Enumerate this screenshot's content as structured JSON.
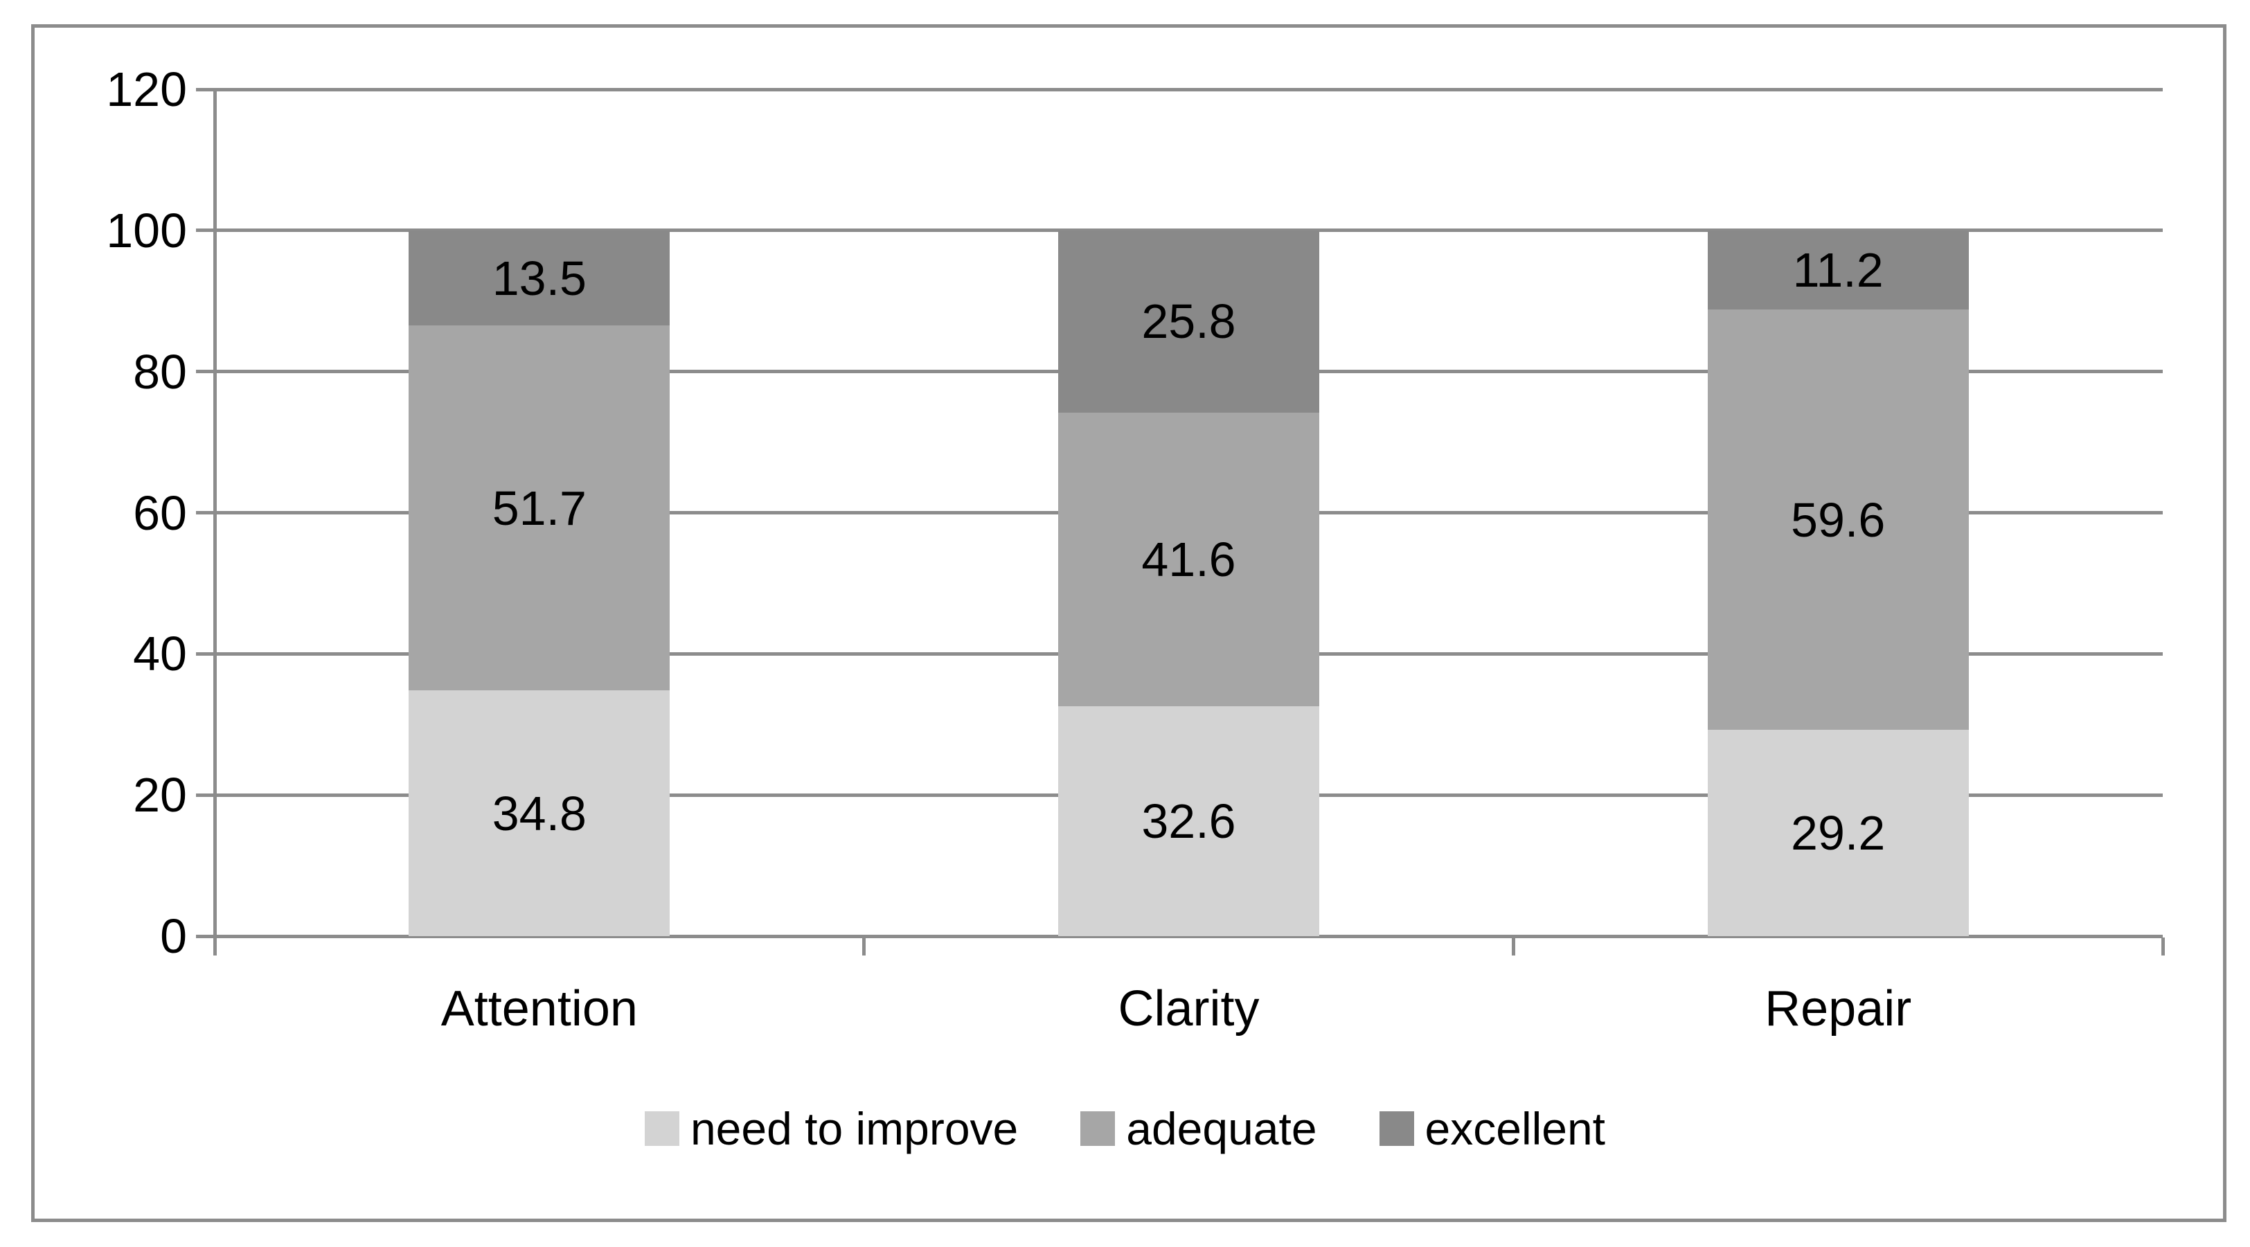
{
  "chart_data": {
    "type": "bar",
    "stacked": true,
    "categories": [
      "Attention",
      "Clarity",
      "Repair"
    ],
    "series": [
      {
        "name": "need to improve",
        "color": "#d3d3d3",
        "values": [
          34.8,
          32.6,
          29.2
        ]
      },
      {
        "name": "adequate",
        "color": "#a6a6a6",
        "values": [
          51.7,
          41.6,
          59.6
        ]
      },
      {
        "name": "excellent",
        "color": "#898989",
        "values": [
          13.5,
          25.8,
          11.2
        ]
      }
    ],
    "title": "",
    "xlabel": "",
    "ylabel": "",
    "ylim": [
      0,
      120
    ],
    "yticks": [
      0,
      20,
      40,
      60,
      80,
      100,
      120
    ],
    "grid": true,
    "legend_position": "bottom",
    "line_color": "#8c8c8c",
    "label_color": "#000000"
  }
}
